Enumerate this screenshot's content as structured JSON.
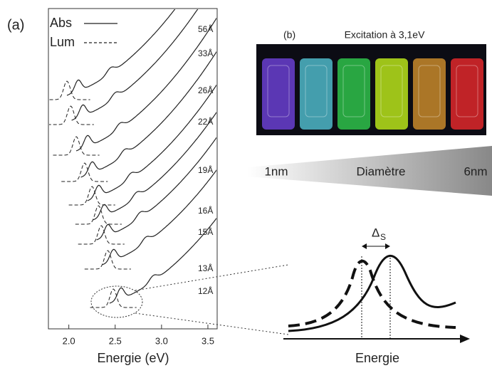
{
  "chart_data": {
    "type": "line",
    "panel_label": "(a)",
    "x_label": "Energie (eV)",
    "xlim": [
      1.78,
      3.6
    ],
    "xticks": [
      {
        "value": 2,
        "label": "2.0"
      },
      {
        "value": 2.5,
        "label": "2.5"
      },
      {
        "value": 3,
        "label": "3.0"
      },
      {
        "value": 3.5,
        "label": "3.5"
      }
    ],
    "legend": [
      {
        "name": "Abs",
        "style": "solid"
      },
      {
        "name": "Lum",
        "style": "dashed"
      }
    ],
    "series": [
      {
        "name": "56Å",
        "lum_peak": 1.98,
        "abs_peak": 2.1
      },
      {
        "name": "33Å",
        "lum_peak": 2.02,
        "abs_peak": 2.15
      },
      {
        "name": "26Å",
        "lum_peak": 2.08,
        "abs_peak": 2.2
      },
      {
        "name": "22Å",
        "lum_peak": 2.17,
        "abs_peak": 2.25
      },
      {
        "name": "19Å",
        "lum_peak": 2.25,
        "abs_peak": 2.32
      },
      {
        "name": "16Å",
        "lum_peak": 2.32,
        "abs_peak": 2.38
      },
      {
        "name": "15Å",
        "lum_peak": 2.35,
        "abs_peak": 2.42
      },
      {
        "name": "13Å",
        "lum_peak": 2.42,
        "abs_peak": 2.48
      },
      {
        "name": "12Å",
        "lum_peak": 2.48,
        "abs_peak": 2.56
      }
    ]
  },
  "panel_b": {
    "label": "(b)",
    "caption": "Excitation à 3,1eV",
    "vial_colors": [
      "#6a3fd0",
      "#4fb8c8",
      "#2fc24a",
      "#b8e41a",
      "#c88a2a",
      "#e0282a"
    ]
  },
  "size_scale": {
    "min": "1nm",
    "label": "Diamètre",
    "max": "6nm"
  },
  "diagram": {
    "delta": "Δ",
    "delta_sub": "S",
    "x_label": "Energie"
  }
}
